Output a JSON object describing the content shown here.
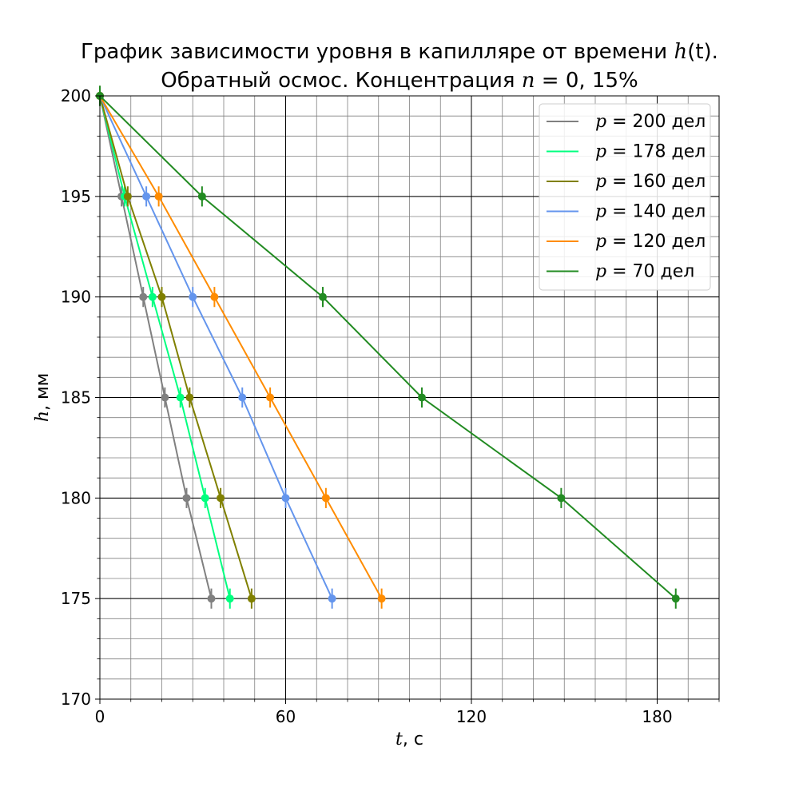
{
  "title_line1_text": "График зависимости уровня в капилляре от времени ",
  "title_line1_func": "h",
  "title_line1_arg": "(t).",
  "title_line2_text": "Обратный осмос. Концентрация ",
  "title_line2_var": "n",
  "title_line2_eq": " = 0, 15%",
  "chart_data": {
    "type": "line",
    "title": "График зависимости уровня в капилляре от времени h(t). Обратный осмос. Концентрация n = 0, 15%",
    "xlabel_var": "t",
    "xlabel_unit": ", с",
    "ylabel_var": "h",
    "ylabel_unit": ", мм",
    "xlim": [
      0,
      200
    ],
    "ylim": [
      170,
      200
    ],
    "x_ticks": [
      0,
      60,
      120,
      180
    ],
    "y_ticks": [
      170,
      175,
      180,
      185,
      190,
      195,
      200
    ],
    "x_minor_step": 10,
    "y_minor_step": 1,
    "grid": true,
    "legend_position": "top-right",
    "error_bar_h": 0.5,
    "series": [
      {
        "name": "p = 200 дел",
        "label_var": "p",
        "label_value": " = 200 дел",
        "color": "#808080",
        "points": [
          [
            0,
            200
          ],
          [
            7,
            195
          ],
          [
            14,
            190
          ],
          [
            21,
            185
          ],
          [
            28,
            180
          ],
          [
            36,
            175
          ]
        ]
      },
      {
        "name": "p = 178 дел",
        "label_var": "p",
        "label_value": " = 178 дел",
        "color": "#00ff7f",
        "points": [
          [
            0,
            200
          ],
          [
            8,
            195
          ],
          [
            17,
            190
          ],
          [
            26,
            185
          ],
          [
            34,
            180
          ],
          [
            42,
            175
          ]
        ]
      },
      {
        "name": "p = 160 дел",
        "label_var": "p",
        "label_value": " = 160 дел",
        "color": "#808000",
        "points": [
          [
            0,
            200
          ],
          [
            9,
            195
          ],
          [
            20,
            190
          ],
          [
            29,
            185
          ],
          [
            39,
            180
          ],
          [
            49,
            175
          ]
        ]
      },
      {
        "name": "p = 140 дел",
        "label_var": "p",
        "label_value": " = 140 дел",
        "color": "#6495ed",
        "points": [
          [
            0,
            200
          ],
          [
            15,
            195
          ],
          [
            30,
            190
          ],
          [
            46,
            185
          ],
          [
            60,
            180
          ],
          [
            75,
            175
          ]
        ]
      },
      {
        "name": "p = 120 дел",
        "label_var": "p",
        "label_value": " = 120 дел",
        "color": "#ff8c00",
        "points": [
          [
            0,
            200
          ],
          [
            19,
            195
          ],
          [
            37,
            190
          ],
          [
            55,
            185
          ],
          [
            73,
            180
          ],
          [
            91,
            175
          ]
        ]
      },
      {
        "name": "p = 70 дел",
        "label_var": "p",
        "label_value": " = 70 дел",
        "color": "#228b22",
        "points": [
          [
            0,
            200
          ],
          [
            33,
            195
          ],
          [
            72,
            190
          ],
          [
            104,
            185
          ],
          [
            149,
            180
          ],
          [
            186,
            175
          ]
        ]
      }
    ]
  }
}
